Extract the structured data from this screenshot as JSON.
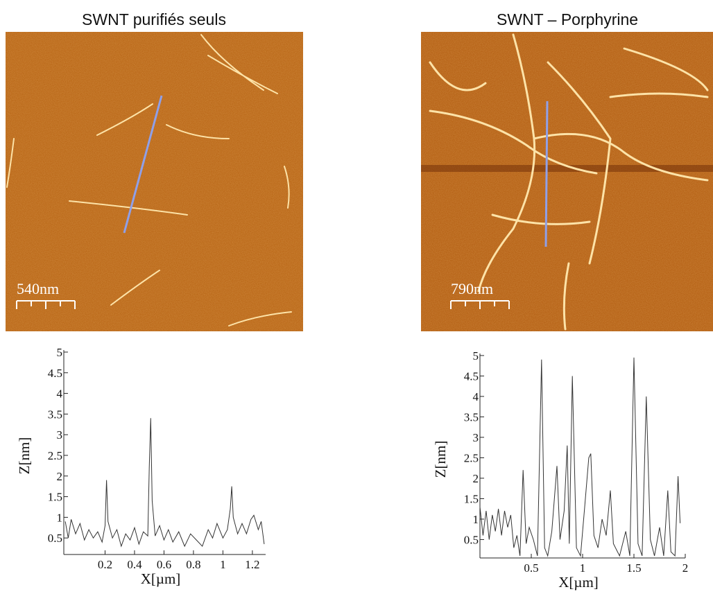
{
  "chart_data": [
    {
      "type": "line",
      "title": "SWNT purifiés seuls",
      "scale_bar_label": "540nm",
      "x_label": "X[µm]",
      "y_label": "Z[nm]",
      "x": [
        -0.07,
        -0.05,
        -0.03,
        0,
        0.03,
        0.06,
        0.09,
        0.12,
        0.15,
        0.18,
        0.2,
        0.21,
        0.22,
        0.25,
        0.28,
        0.31,
        0.34,
        0.37,
        0.4,
        0.43,
        0.46,
        0.49,
        0.5,
        0.51,
        0.52,
        0.54,
        0.57,
        0.6,
        0.63,
        0.66,
        0.7,
        0.74,
        0.78,
        0.82,
        0.86,
        0.9,
        0.93,
        0.96,
        1.0,
        1.03,
        1.05,
        1.06,
        1.07,
        1.1,
        1.13,
        1.16,
        1.19,
        1.21,
        1.24,
        1.26,
        1.28
      ],
      "values": [
        0.9,
        0.5,
        0.95,
        0.6,
        0.85,
        0.45,
        0.7,
        0.5,
        0.65,
        0.4,
        0.8,
        1.9,
        0.9,
        0.5,
        0.7,
        0.3,
        0.6,
        0.45,
        0.75,
        0.35,
        0.65,
        0.55,
        2.2,
        3.4,
        1.4,
        0.55,
        0.8,
        0.45,
        0.7,
        0.4,
        0.65,
        0.3,
        0.6,
        0.45,
        0.3,
        0.7,
        0.5,
        0.85,
        0.5,
        0.7,
        1.2,
        1.75,
        1.0,
        0.6,
        0.85,
        0.6,
        0.95,
        1.05,
        0.7,
        0.9,
        0.35
      ],
      "color": "#333333",
      "xlim": [
        -0.08,
        1.29
      ],
      "ylim": [
        0.1,
        5.05
      ],
      "xticks": [
        0.2,
        0.4,
        0.6,
        0.8,
        1,
        1.2
      ],
      "yticks": [
        0.5,
        1,
        1.5,
        2,
        2.5,
        3,
        3.5,
        4,
        4.5,
        5
      ]
    },
    {
      "type": "line",
      "title": "SWNT – Porphyrine",
      "scale_bar_label": "790nm",
      "x_label": "X[µm]",
      "y_label": "Z[nm]",
      "x": [
        0,
        0.03,
        0.06,
        0.09,
        0.12,
        0.15,
        0.18,
        0.21,
        0.24,
        0.27,
        0.3,
        0.33,
        0.36,
        0.39,
        0.42,
        0.45,
        0.48,
        0.52,
        0.56,
        0.6,
        0.63,
        0.66,
        0.7,
        0.75,
        0.78,
        0.82,
        0.85,
        0.87,
        0.9,
        0.94,
        0.98,
        1.02,
        1.06,
        1.08,
        1.11,
        1.15,
        1.19,
        1.23,
        1.27,
        1.3,
        1.36,
        1.42,
        1.46,
        1.5,
        1.54,
        1.58,
        1.62,
        1.66,
        1.7,
        1.75,
        1.79,
        1.83,
        1.86,
        1.9,
        1.93,
        1.95
      ],
      "values": [
        1.3,
        0.6,
        1.2,
        0.5,
        1.1,
        0.7,
        1.25,
        0.6,
        1.2,
        0.8,
        1.1,
        0.3,
        0.6,
        0.1,
        2.2,
        0.4,
        0.8,
        0.5,
        0.1,
        4.9,
        0.3,
        0.1,
        0.7,
        2.3,
        0.5,
        1.2,
        2.8,
        0.4,
        4.5,
        0.3,
        0.1,
        1.3,
        2.5,
        2.6,
        0.6,
        0.3,
        1.0,
        0.6,
        1.7,
        0.4,
        0.1,
        0.7,
        0.1,
        4.95,
        0.4,
        0.1,
        4.0,
        0.5,
        0.1,
        0.8,
        0.1,
        1.7,
        0.2,
        0.1,
        2.05,
        0.9
      ],
      "color": "#333333",
      "xlim": [
        0,
        2
      ],
      "ylim": [
        0.05,
        5.05
      ],
      "xticks": [
        0.5,
        1,
        1.5,
        2
      ],
      "yticks": [
        0.5,
        1,
        1.5,
        2,
        2.5,
        3,
        3.5,
        4,
        4.5,
        5
      ]
    }
  ]
}
